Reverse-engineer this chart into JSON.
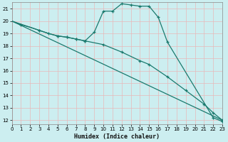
{
  "xlabel": "Humidex (Indice chaleur)",
  "bg_color": "#cceef0",
  "grid_color": "#e8b8b8",
  "line_color": "#1a7a6e",
  "x_ticks": [
    0,
    1,
    2,
    3,
    4,
    5,
    6,
    7,
    8,
    9,
    10,
    11,
    12,
    13,
    14,
    15,
    16,
    17,
    18,
    19,
    20,
    21,
    22,
    23
  ],
  "y_ticks": [
    12,
    13,
    14,
    15,
    16,
    17,
    18,
    19,
    20,
    21
  ],
  "xlim": [
    0,
    23
  ],
  "ylim": [
    11.7,
    21.5
  ],
  "line1_x": [
    0,
    1,
    2,
    3,
    4,
    5,
    6,
    7,
    8,
    9,
    10,
    11,
    12,
    13,
    14,
    15,
    16,
    17,
    22,
    23
  ],
  "line1_y": [
    20.0,
    19.7,
    19.5,
    19.25,
    19.0,
    18.8,
    18.7,
    18.55,
    18.4,
    19.1,
    20.8,
    20.8,
    21.4,
    21.3,
    21.2,
    21.2,
    20.3,
    18.3,
    12.2,
    11.9
  ],
  "line1_marker_x": [
    1,
    3,
    5,
    6,
    7,
    8,
    9,
    10,
    11,
    12,
    13,
    14,
    15,
    16,
    17,
    22,
    23
  ],
  "line1_marker_y": [
    19.7,
    19.25,
    18.8,
    18.7,
    18.55,
    18.4,
    19.1,
    20.8,
    20.8,
    21.4,
    21.3,
    21.2,
    21.2,
    20.3,
    18.3,
    12.2,
    11.9
  ],
  "line2_x": [
    0,
    23
  ],
  "line2_y": [
    20.0,
    12.0
  ],
  "line3_x": [
    0,
    3,
    4,
    5,
    6,
    7,
    8,
    10,
    12,
    14,
    15,
    17,
    19,
    21,
    22,
    23
  ],
  "line3_y": [
    20.0,
    19.25,
    19.0,
    18.8,
    18.7,
    18.55,
    18.4,
    18.1,
    17.5,
    16.8,
    16.5,
    15.5,
    14.4,
    13.3,
    12.6,
    12.0
  ],
  "line3_marker_x": [
    3,
    4,
    5,
    6,
    7,
    8,
    10,
    12,
    14,
    15,
    17,
    19,
    21,
    22,
    23
  ],
  "line3_marker_y": [
    19.25,
    19.0,
    18.8,
    18.7,
    18.55,
    18.4,
    18.1,
    17.5,
    16.8,
    16.5,
    15.5,
    14.4,
    13.3,
    12.6,
    12.0
  ]
}
